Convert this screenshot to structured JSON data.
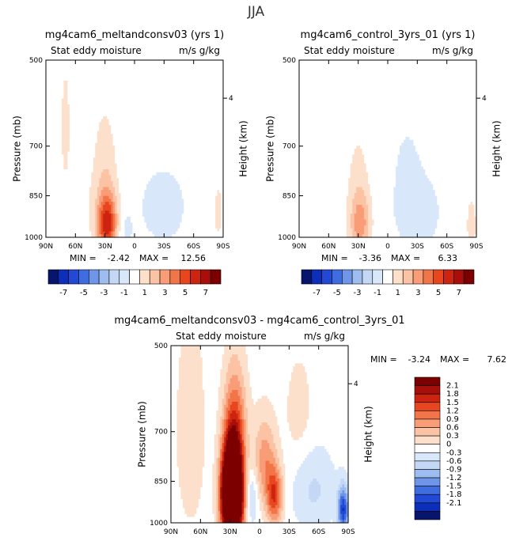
{
  "page_title": "JJA",
  "colors": {
    "blue_dark": "#08156e",
    "blue_2": "#0d2eb8",
    "blue_3": "#2248d6",
    "blue_4": "#3f6ce0",
    "blue_5": "#6f95e8",
    "blue_6": "#9dbcf0",
    "blue_7": "#c4d8f6",
    "blue_8": "#d8e8fa",
    "white": "#ffffff",
    "red_1": "#fde0cc",
    "red_2": "#fbc3a4",
    "red_3": "#f89d77",
    "red_4": "#f27548",
    "red_5": "#e8461f",
    "red_6": "#cc2410",
    "red_7": "#a70f0a",
    "red_8": "#7d0000"
  },
  "chart_data": [
    {
      "type": "heatmap",
      "title": "mg4cam6_meltandconsv03 (yrs 1)",
      "subtitle_left": "Stat eddy moisture",
      "subtitle_right": "m/s g/kg",
      "xlabel": "",
      "ylabel": "Pressure (mb)",
      "ylabel_right": "Height (km)",
      "x_ticks": [
        "90N",
        "60N",
        "30N",
        "0",
        "30S",
        "60S",
        "90S"
      ],
      "y_ticks": [
        "500",
        "700",
        "850",
        "1000"
      ],
      "y_right_ticks": [
        "4"
      ],
      "min_label": "MIN =",
      "min_value": "-2.42",
      "max_label": "MAX =",
      "max_value": "12.56",
      "features": [
        {
          "lat": 28,
          "p": 950,
          "amp": 11.5,
          "slat": 7,
          "sp": 75
        },
        {
          "lat": 30,
          "p": 800,
          "amp": 3.0,
          "slat": 9,
          "sp": 150
        },
        {
          "lat": 70,
          "p": 650,
          "amp": 1.5,
          "slat": 6,
          "sp": 180
        },
        {
          "lat": 50,
          "p": 700,
          "amp": 1.0,
          "slat": 4,
          "sp": 260
        },
        {
          "lat": -30,
          "p": 900,
          "amp": -1.8,
          "slat": 15,
          "sp": 80
        },
        {
          "lat": 10,
          "p": 980,
          "amp": -1.4,
          "slat": 6,
          "sp": 60
        },
        {
          "lat": -60,
          "p": 950,
          "amp": 1.2,
          "slat": 5,
          "sp": 60
        },
        {
          "lat": -85,
          "p": 900,
          "amp": 1.5,
          "slat": 5,
          "sp": 100
        },
        {
          "lat": -10,
          "p": 600,
          "amp": -0.6,
          "slat": 60,
          "sp": 300
        }
      ]
    },
    {
      "type": "heatmap",
      "title": "mg4cam6_control_3yrs_01 (yrs 1)",
      "subtitle_left": "Stat eddy moisture",
      "subtitle_right": "m/s g/kg",
      "xlabel": "",
      "ylabel": "Pressure (mb)",
      "ylabel_right": "Height (km)",
      "x_ticks": [
        "90N",
        "60N",
        "30N",
        "0",
        "30S",
        "60S",
        "90S"
      ],
      "y_ticks": [
        "500",
        "700",
        "850",
        "1000"
      ],
      "y_right_ticks": [
        "4"
      ],
      "min_label": "MIN =",
      "min_value": "-3.36",
      "max_label": "MAX =",
      "max_value": "6.33",
      "features": [
        {
          "lat": 28,
          "p": 950,
          "amp": 5.8,
          "slat": 7,
          "sp": 80
        },
        {
          "lat": 30,
          "p": 800,
          "amp": 1.8,
          "slat": 9,
          "sp": 150
        },
        {
          "lat": 70,
          "p": 650,
          "amp": 1.0,
          "slat": 6,
          "sp": 180
        },
        {
          "lat": -30,
          "p": 920,
          "amp": -2.0,
          "slat": 15,
          "sp": 90
        },
        {
          "lat": -20,
          "p": 780,
          "amp": -0.9,
          "slat": 8,
          "sp": 80
        },
        {
          "lat": -85,
          "p": 950,
          "amp": 2.0,
          "slat": 4,
          "sp": 80
        },
        {
          "lat": -10,
          "p": 600,
          "amp": -0.6,
          "slat": 60,
          "sp": 300
        }
      ]
    },
    {
      "type": "heatmap",
      "title": "mg4cam6_meltandconsv03 - mg4cam6_control_3yrs_01",
      "subtitle_left": "Stat eddy moisture",
      "subtitle_right": "m/s g/kg",
      "xlabel": "",
      "ylabel": "Pressure (mb)",
      "ylabel_right": "Height (km)",
      "x_ticks": [
        "90N",
        "60N",
        "30N",
        "0",
        "30S",
        "60S",
        "90S"
      ],
      "y_ticks": [
        "500",
        "700",
        "850",
        "1000"
      ],
      "y_right_ticks": [
        "4"
      ],
      "min_label": "MIN =",
      "min_value": "-3.24",
      "max_label": "MAX =",
      "max_value": "7.62",
      "features": [
        {
          "lat": 28,
          "p": 900,
          "amp": 6.5,
          "slat": 7,
          "sp": 110
        },
        {
          "lat": 25,
          "p": 700,
          "amp": 1.4,
          "slat": 8,
          "sp": 120
        },
        {
          "lat": -15,
          "p": 900,
          "amp": 1.6,
          "slat": 6,
          "sp": 70
        },
        {
          "lat": -5,
          "p": 780,
          "amp": 0.9,
          "slat": 8,
          "sp": 90
        },
        {
          "lat": 8,
          "p": 900,
          "amp": -0.6,
          "slat": 4,
          "sp": 70
        },
        {
          "lat": -85,
          "p": 950,
          "amp": -1.9,
          "slat": 4,
          "sp": 60
        },
        {
          "lat": -55,
          "p": 880,
          "amp": -0.5,
          "slat": 15,
          "sp": 100
        },
        {
          "lat": 70,
          "p": 700,
          "amp": 0.4,
          "slat": 10,
          "sp": 200
        },
        {
          "lat": -40,
          "p": 650,
          "amp": 0.3,
          "slat": 10,
          "sp": 100
        }
      ]
    }
  ],
  "colorbar_small": {
    "labels": [
      "-7",
      "-5",
      "-3",
      "-1",
      "1",
      "3",
      "5",
      "7"
    ]
  },
  "colorbar_diff": {
    "labels": [
      "2.1",
      "1.8",
      "1.5",
      "1.2",
      "0.9",
      "0.6",
      "0.3",
      "0",
      "-0.3",
      "-0.6",
      "-0.9",
      "-1.2",
      "-1.5",
      "-1.8",
      "-2.1"
    ]
  }
}
